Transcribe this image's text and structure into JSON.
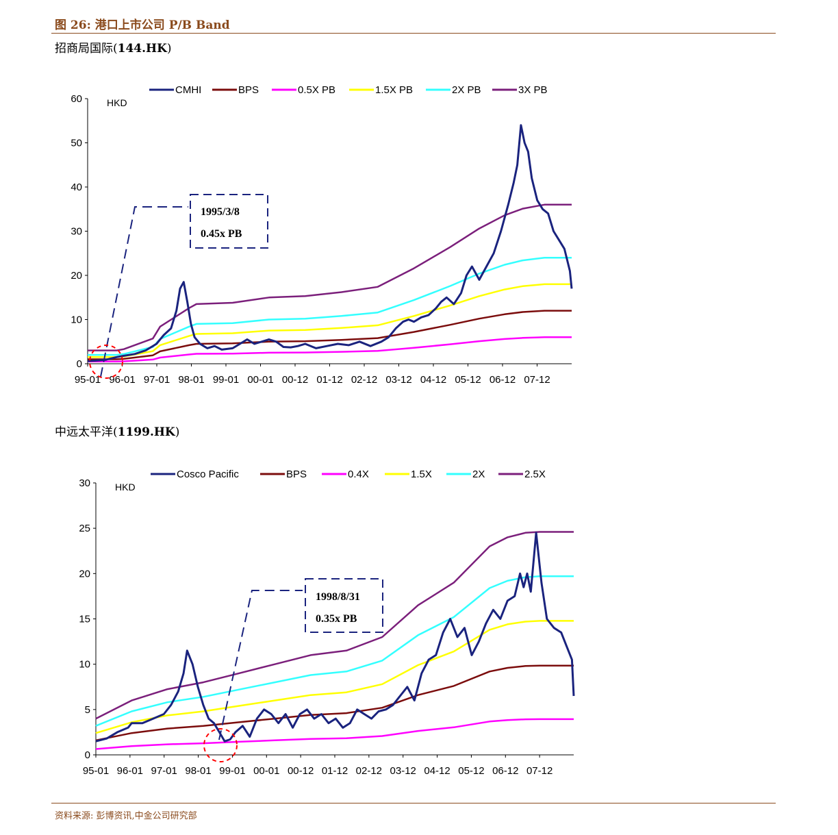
{
  "figure_title": "图 26:  港口上市公司 P/B Band",
  "source": "资料来源:   彭博资讯,中金公司研究部",
  "charts": [
    {
      "name_cn": "招商局国际",
      "code": "144.HK",
      "unit": "HKD",
      "annotation": {
        "line1": "1995/3/8",
        "line2": "0.45x PB"
      }
    },
    {
      "name_cn": "中远太平洋",
      "code": "1199.HK",
      "unit": "HKD",
      "annotation": {
        "line1": "1998/8/31",
        "line2": "0.35x PB"
      }
    }
  ],
  "chart_data": [
    {
      "type": "line",
      "title": "招商局国际(144.HK)",
      "ylabel": "HKD",
      "ylim": [
        0,
        60
      ],
      "yticks": [
        0,
        10,
        20,
        30,
        40,
        50,
        60
      ],
      "xlim": [
        1995.0,
        2008.35
      ],
      "xtick_labels": [
        "95-01",
        "96-01",
        "97-01",
        "98-01",
        "99-01",
        "00-01",
        "00-12",
        "01-12",
        "02-12",
        "03-12",
        "04-12",
        "05-12",
        "06-12",
        "07-12"
      ],
      "legend_position": "top",
      "grid": false,
      "series": [
        {
          "name": "CMHI",
          "color": "#1a237e",
          "width": 3,
          "x": [
            1995.0,
            1995.2,
            1995.5,
            1995.8,
            1996.0,
            1996.3,
            1996.6,
            1996.9,
            1997.1,
            1997.3,
            1997.45,
            1997.55,
            1997.65,
            1997.75,
            1997.85,
            1997.95,
            1998.1,
            1998.3,
            1998.5,
            1998.7,
            1999.0,
            1999.2,
            1999.4,
            1999.6,
            1999.8,
            2000.0,
            2000.2,
            2000.4,
            2000.6,
            2000.8,
            2001.0,
            2001.3,
            2001.6,
            2001.9,
            2002.2,
            2002.5,
            2002.8,
            2003.1,
            2003.3,
            2003.5,
            2003.7,
            2003.85,
            2004.0,
            2004.2,
            2004.4,
            2004.6,
            2004.75,
            2004.9,
            2005.1,
            2005.3,
            2005.45,
            2005.6,
            2005.8,
            2006.0,
            2006.2,
            2006.4,
            2006.6,
            2006.75,
            2006.85,
            2006.95,
            2007.05,
            2007.15,
            2007.25,
            2007.4,
            2007.55,
            2007.7,
            2007.85,
            2008.0,
            2008.15,
            2008.3,
            2008.35
          ],
          "y": [
            0.6,
            0.7,
            0.9,
            1.5,
            1.8,
            2.2,
            3.0,
            4.5,
            6.5,
            8.0,
            12.0,
            17.0,
            18.5,
            14.0,
            9.0,
            6.0,
            4.5,
            3.5,
            4.0,
            3.2,
            3.5,
            4.5,
            5.5,
            4.5,
            5.0,
            5.5,
            5.0,
            3.8,
            3.7,
            4.0,
            4.5,
            3.5,
            4.0,
            4.5,
            4.2,
            5.0,
            4.0,
            5.0,
            6.0,
            8.0,
            9.5,
            10.0,
            9.5,
            10.5,
            11.0,
            12.5,
            14.0,
            15.0,
            13.5,
            16.0,
            20.0,
            22.0,
            19.0,
            22.0,
            25.0,
            30.0,
            36.0,
            41.0,
            45.0,
            54.0,
            50.0,
            48.0,
            42.0,
            37.0,
            35.0,
            34.0,
            30.0,
            28.0,
            26.0,
            21.0,
            17.0
          ]
        },
        {
          "name": "BPS",
          "color": "#7b0c0c",
          "width": 2.5,
          "x": [
            1995.0,
            1995.8,
            1996.0,
            1996.8,
            1997.0,
            1997.8,
            1998.0,
            1999.0,
            2000.0,
            2001.0,
            2002.0,
            2003.0,
            2004.0,
            2005.0,
            2005.8,
            2006.5,
            2007.0,
            2007.4,
            2007.6,
            2008.35
          ],
          "y": [
            1.0,
            1.0,
            1.1,
            1.9,
            2.8,
            4.2,
            4.5,
            4.6,
            5.0,
            5.1,
            5.4,
            5.8,
            7.2,
            8.8,
            10.2,
            11.2,
            11.7,
            11.9,
            12.0,
            12.0
          ]
        },
        {
          "name": "0.5X PB",
          "color": "#ff00ff",
          "width": 2.5,
          "x": [
            1995.0,
            1995.8,
            1996.0,
            1996.8,
            1997.0,
            1997.8,
            1998.0,
            1999.0,
            2000.0,
            2001.0,
            2002.0,
            2003.0,
            2004.0,
            2005.0,
            2005.8,
            2006.5,
            2007.0,
            2007.4,
            2007.6,
            2008.35
          ],
          "y": [
            0.5,
            0.5,
            0.55,
            0.95,
            1.4,
            2.1,
            2.25,
            2.3,
            2.5,
            2.55,
            2.7,
            2.9,
            3.6,
            4.4,
            5.1,
            5.6,
            5.85,
            5.95,
            6.0,
            6.0
          ]
        },
        {
          "name": "1.5X PB",
          "color": "#ffff00",
          "width": 2.5,
          "x": [
            1995.0,
            1995.8,
            1996.0,
            1996.8,
            1997.0,
            1997.8,
            1998.0,
            1999.0,
            2000.0,
            2001.0,
            2002.0,
            2003.0,
            2004.0,
            2005.0,
            2005.8,
            2006.5,
            2007.0,
            2007.4,
            2007.6,
            2008.35
          ],
          "y": [
            1.5,
            1.5,
            1.65,
            2.85,
            4.2,
            6.3,
            6.75,
            6.9,
            7.5,
            7.65,
            8.1,
            8.7,
            10.8,
            13.2,
            15.3,
            16.8,
            17.55,
            17.85,
            18.0,
            18.0
          ]
        },
        {
          "name": "2X PB",
          "color": "#33ffff",
          "width": 2.5,
          "x": [
            1995.0,
            1995.8,
            1996.0,
            1996.8,
            1997.0,
            1997.8,
            1998.0,
            1999.0,
            2000.0,
            2001.0,
            2002.0,
            2003.0,
            2004.0,
            2005.0,
            2005.8,
            2006.5,
            2007.0,
            2007.4,
            2007.6,
            2008.35
          ],
          "y": [
            2.0,
            2.0,
            2.2,
            3.8,
            5.6,
            8.4,
            9.0,
            9.2,
            10.0,
            10.2,
            10.8,
            11.6,
            14.4,
            17.6,
            20.4,
            22.4,
            23.4,
            23.8,
            24.0,
            24.0
          ]
        },
        {
          "name": "3X PB",
          "color": "#7b1f7b",
          "width": 2.5,
          "x": [
            1995.0,
            1995.8,
            1996.0,
            1996.8,
            1997.0,
            1997.8,
            1998.0,
            1999.0,
            2000.0,
            2001.0,
            2002.0,
            2003.0,
            2004.0,
            2005.0,
            2005.8,
            2006.5,
            2007.0,
            2007.4,
            2007.6,
            2008.35
          ],
          "y": [
            3.0,
            3.0,
            3.3,
            5.7,
            8.4,
            12.6,
            13.5,
            13.8,
            15.0,
            15.3,
            16.2,
            17.4,
            21.6,
            26.4,
            30.6,
            33.6,
            35.1,
            35.7,
            36.0,
            36.0
          ]
        }
      ]
    },
    {
      "type": "line",
      "title": "中远太平洋(1199.HK)",
      "ylabel": "HKD",
      "ylim": [
        0,
        30
      ],
      "yticks": [
        0,
        5,
        10,
        15,
        20,
        25,
        30
      ],
      "xlim": [
        1995.0,
        2008.35
      ],
      "xtick_labels": [
        "95-01",
        "96-01",
        "97-01",
        "98-01",
        "99-01",
        "00-01",
        "00-12",
        "01-12",
        "02-12",
        "03-12",
        "04-12",
        "05-12",
        "06-12",
        "07-12"
      ],
      "legend_position": "top",
      "grid": false,
      "series": [
        {
          "name": "Cosco Pacific",
          "color": "#1a237e",
          "width": 3,
          "x": [
            1995.0,
            1995.3,
            1995.6,
            1995.9,
            1996.0,
            1996.3,
            1996.6,
            1996.9,
            1997.1,
            1997.3,
            1997.45,
            1997.55,
            1997.7,
            1997.85,
            1998.0,
            1998.15,
            1998.3,
            1998.45,
            1998.6,
            1998.75,
            1998.9,
            1999.1,
            1999.3,
            1999.5,
            1999.7,
            1999.9,
            2000.1,
            2000.3,
            2000.5,
            2000.7,
            2000.9,
            2001.1,
            2001.3,
            2001.5,
            2001.7,
            2001.9,
            2002.1,
            2002.3,
            2002.5,
            2002.7,
            2002.9,
            2003.1,
            2003.3,
            2003.5,
            2003.7,
            2003.9,
            2004.1,
            2004.3,
            2004.5,
            2004.7,
            2004.9,
            2005.1,
            2005.3,
            2005.5,
            2005.7,
            2005.9,
            2006.1,
            2006.3,
            2006.5,
            2006.7,
            2006.85,
            2006.95,
            2007.05,
            2007.15,
            2007.3,
            2007.45,
            2007.6,
            2007.8,
            2008.0,
            2008.15,
            2008.3,
            2008.35
          ],
          "y": [
            1.5,
            1.8,
            2.5,
            3.0,
            3.5,
            3.5,
            4.0,
            4.5,
            5.5,
            7.0,
            9.0,
            11.5,
            10.0,
            7.5,
            5.5,
            4.0,
            3.5,
            2.5,
            1.5,
            1.7,
            2.5,
            3.2,
            2.0,
            4.0,
            5.0,
            4.5,
            3.5,
            4.5,
            3.0,
            4.5,
            5.0,
            4.0,
            4.5,
            3.5,
            4.0,
            3.0,
            3.5,
            5.0,
            4.5,
            4.0,
            4.8,
            5.0,
            5.5,
            6.5,
            7.5,
            6.0,
            9.0,
            10.5,
            11.0,
            13.5,
            15.0,
            13.0,
            14.0,
            11.0,
            12.5,
            14.5,
            16.0,
            15.0,
            17.0,
            17.5,
            20.0,
            18.5,
            20.0,
            18.0,
            24.5,
            19.0,
            15.0,
            14.0,
            13.5,
            12.0,
            10.5,
            6.5
          ]
        },
        {
          "name": "BPS",
          "color": "#7b0c0c",
          "width": 2.5,
          "x": [
            1995.0,
            1996.0,
            1997.0,
            1998.0,
            1999.0,
            2000.0,
            2001.0,
            2002.0,
            2003.0,
            2004.0,
            2005.0,
            2006.0,
            2006.5,
            2007.0,
            2007.4,
            2008.35
          ],
          "y": [
            1.6,
            2.4,
            2.9,
            3.2,
            3.6,
            4.0,
            4.4,
            4.6,
            5.2,
            6.6,
            7.6,
            9.2,
            9.6,
            9.8,
            9.85,
            9.85
          ]
        },
        {
          "name": "0.4X",
          "color": "#ff00ff",
          "width": 2.5,
          "x": [
            1995.0,
            1996.0,
            1997.0,
            1998.0,
            1999.0,
            2000.0,
            2001.0,
            2002.0,
            2003.0,
            2004.0,
            2005.0,
            2006.0,
            2006.5,
            2007.0,
            2007.4,
            2008.35
          ],
          "y": [
            0.64,
            0.96,
            1.16,
            1.28,
            1.44,
            1.6,
            1.76,
            1.84,
            2.08,
            2.64,
            3.04,
            3.68,
            3.84,
            3.92,
            3.94,
            3.94
          ]
        },
        {
          "name": "1.5X",
          "color": "#ffff00",
          "width": 2.5,
          "x": [
            1995.0,
            1996.0,
            1997.0,
            1998.0,
            1999.0,
            2000.0,
            2001.0,
            2002.0,
            2003.0,
            2004.0,
            2005.0,
            2006.0,
            2006.5,
            2007.0,
            2007.4,
            2008.35
          ],
          "y": [
            2.4,
            3.6,
            4.35,
            4.8,
            5.4,
            6.0,
            6.6,
            6.9,
            7.8,
            9.9,
            11.4,
            13.8,
            14.4,
            14.7,
            14.78,
            14.78
          ]
        },
        {
          "name": "2X",
          "color": "#33ffff",
          "width": 2.5,
          "x": [
            1995.0,
            1996.0,
            1997.0,
            1998.0,
            1999.0,
            2000.0,
            2001.0,
            2002.0,
            2003.0,
            2004.0,
            2005.0,
            2006.0,
            2006.5,
            2007.0,
            2007.4,
            2008.35
          ],
          "y": [
            3.2,
            4.8,
            5.8,
            6.4,
            7.2,
            8.0,
            8.8,
            9.2,
            10.4,
            13.2,
            15.2,
            18.4,
            19.2,
            19.6,
            19.7,
            19.7
          ]
        },
        {
          "name": "2.5X",
          "color": "#7b1f7b",
          "width": 2.5,
          "x": [
            1995.0,
            1996.0,
            1997.0,
            1998.0,
            1999.0,
            2000.0,
            2001.0,
            2002.0,
            2003.0,
            2004.0,
            2005.0,
            2006.0,
            2006.5,
            2007.0,
            2007.4,
            2008.35
          ],
          "y": [
            4.0,
            6.0,
            7.25,
            8.0,
            9.0,
            10.0,
            11.0,
            11.5,
            13.0,
            16.5,
            19.0,
            23.0,
            24.0,
            24.5,
            24.6,
            24.6
          ]
        }
      ]
    }
  ]
}
